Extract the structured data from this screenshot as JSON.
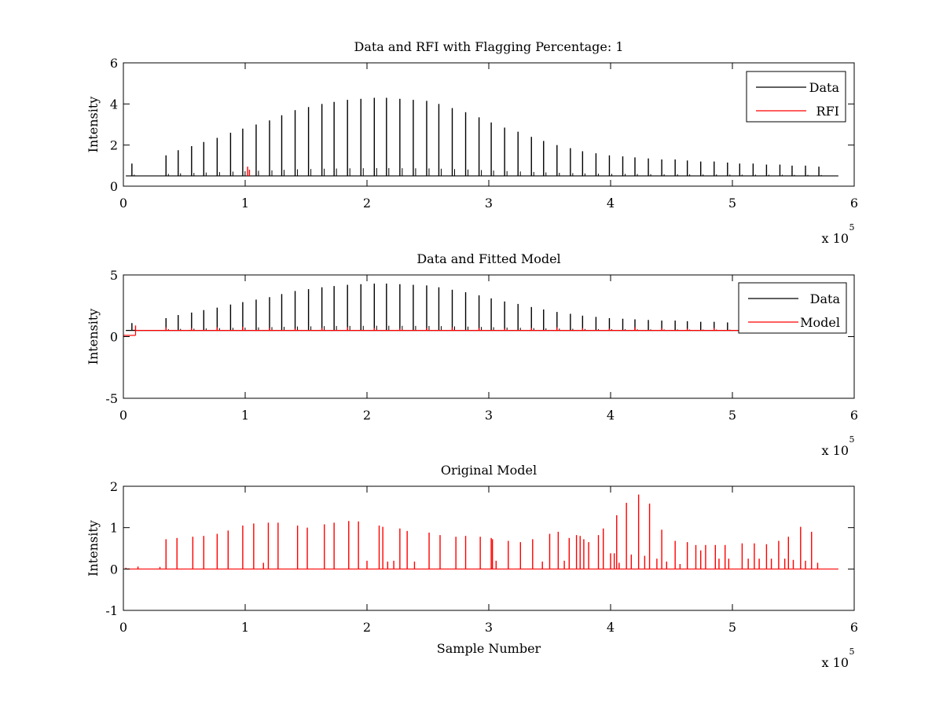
{
  "chart_data": [
    {
      "type": "line",
      "title": "Data and RFI with Flagging Percentage: 1",
      "xlabel": "",
      "ylabel": "Intensity",
      "xlim": [
        0,
        600000
      ],
      "ylim": [
        0,
        6
      ],
      "xticks": [
        0,
        100000,
        200000,
        300000,
        400000,
        500000,
        600000
      ],
      "xtick_labels": [
        "0",
        "1",
        "2",
        "3",
        "4",
        "5",
        "6"
      ],
      "x_exponent_label": "x 10",
      "x_exponent": "5",
      "yticks": [
        0,
        2,
        4,
        6
      ],
      "ytick_labels": [
        "0",
        "2",
        "4",
        "6"
      ],
      "legend_position": "top-right",
      "grid": false,
      "baseline": 0.5,
      "series": [
        {
          "name": "Data",
          "color": "#000000",
          "spike_x": [
            7000,
            35000,
            45000,
            56000,
            66000,
            77000,
            88000,
            98000,
            109000,
            120000,
            130000,
            141000,
            152000,
            163000,
            173000,
            184000,
            195000,
            206000,
            216000,
            227000,
            238000,
            249000,
            259000,
            270000,
            281000,
            292000,
            302000,
            313000,
            324000,
            335000,
            345000,
            356000,
            367000,
            377000,
            388000,
            399000,
            410000,
            420000,
            431000,
            442000,
            453000,
            463000,
            474000,
            485000,
            496000,
            506000,
            517000,
            528000,
            539000,
            549000,
            560000,
            571000
          ],
          "spike_y": [
            1.1,
            1.5,
            1.75,
            1.95,
            2.15,
            2.35,
            2.6,
            2.8,
            3.0,
            3.2,
            3.45,
            3.7,
            3.85,
            4.0,
            4.1,
            4.2,
            4.25,
            4.3,
            4.3,
            4.25,
            4.2,
            4.15,
            4.0,
            3.8,
            3.6,
            3.35,
            3.1,
            2.85,
            2.65,
            2.4,
            2.2,
            2.0,
            1.85,
            1.7,
            1.6,
            1.5,
            1.45,
            1.4,
            1.35,
            1.3,
            1.3,
            1.25,
            1.2,
            1.2,
            1.15,
            1.1,
            1.1,
            1.05,
            1.05,
            1.0,
            1.0,
            0.95
          ]
        },
        {
          "name": "RFI",
          "color": "#ff0000",
          "spike_x": [
            102000,
            103500
          ],
          "spike_y": [
            0.95,
            0.8
          ]
        }
      ]
    },
    {
      "type": "line",
      "title": "Data and Fitted Model",
      "xlabel": "",
      "ylabel": "Intensity",
      "xlim": [
        0,
        600000
      ],
      "ylim": [
        -5,
        5
      ],
      "xticks": [
        0,
        100000,
        200000,
        300000,
        400000,
        500000,
        600000
      ],
      "xtick_labels": [
        "0",
        "1",
        "2",
        "3",
        "4",
        "5",
        "6"
      ],
      "x_exponent_label": "x 10",
      "x_exponent": "5",
      "yticks": [
        -5,
        0,
        5
      ],
      "ytick_labels": [
        "-5",
        "0",
        "5"
      ],
      "legend_position": "top-right",
      "grid": false,
      "baseline": 0.5,
      "series": [
        {
          "name": "Data",
          "color": "#000000",
          "spike_x": [
            7000,
            35000,
            45000,
            56000,
            66000,
            77000,
            88000,
            98000,
            109000,
            120000,
            130000,
            141000,
            152000,
            163000,
            173000,
            184000,
            195000,
            206000,
            216000,
            227000,
            238000,
            249000,
            259000,
            270000,
            281000,
            292000,
            302000,
            313000,
            324000,
            335000,
            345000,
            356000,
            367000,
            377000,
            388000,
            399000,
            410000,
            420000,
            431000,
            442000,
            453000,
            463000,
            474000,
            485000,
            496000,
            506000,
            517000,
            528000,
            539000,
            549000,
            560000,
            571000
          ],
          "spike_y": [
            1.1,
            1.5,
            1.75,
            1.95,
            2.15,
            2.35,
            2.6,
            2.8,
            3.0,
            3.2,
            3.45,
            3.7,
            3.85,
            4.0,
            4.1,
            4.2,
            4.25,
            4.3,
            4.3,
            4.25,
            4.2,
            4.15,
            4.0,
            3.8,
            3.6,
            3.35,
            3.1,
            2.85,
            2.65,
            2.4,
            2.2,
            2.0,
            1.85,
            1.7,
            1.6,
            1.5,
            1.45,
            1.4,
            1.35,
            1.3,
            1.3,
            1.25,
            1.2,
            1.2,
            1.15,
            1.1,
            1.1,
            1.05,
            1.05,
            1.0,
            1.0,
            0.95
          ]
        },
        {
          "name": "Model",
          "color": "#ff0000",
          "step": {
            "x_end": 10000,
            "y_start": 0.1
          },
          "spike_x": [
            10000,
            35000,
            56000,
            77000,
            98000,
            120000,
            141000,
            163000,
            184000,
            206000,
            227000,
            249000,
            270000,
            292000,
            313000,
            335000,
            356000,
            377000,
            399000,
            420000,
            442000,
            463000,
            485000,
            506000
          ],
          "spike_y": [
            0.9,
            0.75,
            0.7,
            0.75,
            0.8,
            0.7,
            0.65,
            0.7,
            0.75,
            0.7,
            0.65,
            0.7,
            0.75,
            0.7,
            0.65,
            0.7,
            0.75,
            0.7,
            0.65,
            0.75,
            0.7,
            0.65,
            0.7,
            0.65
          ]
        }
      ]
    },
    {
      "type": "line",
      "title": "Original Model",
      "xlabel": "Sample Number",
      "ylabel": "Intensity",
      "xlim": [
        0,
        600000
      ],
      "ylim": [
        -1,
        2
      ],
      "xticks": [
        0,
        100000,
        200000,
        300000,
        400000,
        500000,
        600000
      ],
      "xtick_labels": [
        "0",
        "1",
        "2",
        "3",
        "4",
        "5",
        "6"
      ],
      "x_exponent_label": "x 10",
      "x_exponent": "5",
      "yticks": [
        -1,
        0,
        1,
        2
      ],
      "ytick_labels": [
        "-1",
        "0",
        "1",
        "2"
      ],
      "legend_position": "none",
      "grid": false,
      "baseline": 0.0,
      "series": [
        {
          "color": "#ff0000",
          "spike_x": [
            2000,
            12000,
            30000,
            35000,
            44000,
            57000,
            66000,
            77000,
            86000,
            98000,
            107000,
            115000,
            119000,
            127000,
            143000,
            151000,
            165000,
            173000,
            185000,
            193000,
            200000,
            210000,
            213000,
            217000,
            222000,
            227000,
            233000,
            239000,
            251000,
            260000,
            273000,
            281000,
            293000,
            302000,
            303000,
            306000,
            316000,
            326000,
            336000,
            344000,
            350000,
            357000,
            362000,
            366000,
            372000,
            375000,
            378000,
            382000,
            390000,
            394000,
            400000,
            403000,
            405000,
            407000,
            413000,
            417000,
            423000,
            428000,
            432000,
            438000,
            442000,
            446000,
            453000,
            457000,
            463000,
            470000,
            474000,
            478000,
            486000,
            489000,
            494000,
            497000,
            508000,
            513000,
            518000,
            522000,
            528000,
            532000,
            538000,
            543000,
            546000,
            550000,
            556000,
            560000,
            565000,
            570000
          ],
          "spike_y": [
            0.03,
            0.06,
            0.05,
            0.72,
            0.75,
            0.78,
            0.8,
            0.85,
            0.93,
            1.05,
            1.1,
            0.15,
            1.12,
            1.12,
            1.05,
            1.0,
            1.08,
            1.12,
            1.16,
            1.15,
            0.2,
            1.05,
            1.02,
            0.18,
            0.2,
            0.98,
            0.92,
            0.18,
            0.88,
            0.82,
            0.78,
            0.8,
            0.78,
            0.75,
            0.72,
            0.2,
            0.68,
            0.65,
            0.72,
            0.18,
            0.85,
            0.9,
            0.2,
            0.75,
            0.82,
            0.8,
            0.72,
            0.65,
            0.82,
            0.98,
            0.38,
            0.38,
            1.3,
            0.15,
            1.6,
            0.35,
            1.8,
            0.32,
            1.58,
            0.25,
            0.95,
            0.18,
            0.68,
            0.12,
            0.65,
            0.58,
            0.45,
            0.58,
            0.58,
            0.25,
            0.58,
            0.25,
            0.62,
            0.25,
            0.62,
            0.25,
            0.6,
            0.25,
            0.68,
            0.25,
            0.78,
            0.22,
            1.02,
            0.2,
            0.9,
            0.15
          ]
        }
      ]
    }
  ]
}
